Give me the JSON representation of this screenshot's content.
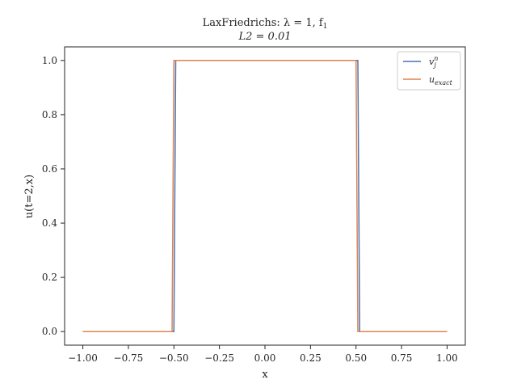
{
  "chart_data": {
    "type": "line",
    "title_line1": "LaxFriedrichs: λ = 1, f",
    "title_line1_sub": "1",
    "title_line2": "L2 = 0.01",
    "xlabel": "x",
    "ylabel": "u(t=2,x)",
    "xlim": [
      -1.1,
      1.1
    ],
    "ylim": [
      -0.05,
      1.05
    ],
    "xticks": [
      -1.0,
      -0.75,
      -0.5,
      -0.25,
      0.0,
      0.25,
      0.5,
      0.75,
      1.0
    ],
    "xtick_labels": [
      "−1.00",
      "−0.75",
      "−0.50",
      "−0.25",
      "0.00",
      "0.25",
      "0.50",
      "0.75",
      "1.00"
    ],
    "yticks": [
      0.0,
      0.2,
      0.4,
      0.6,
      0.8,
      1.0
    ],
    "ytick_labels": [
      "0.0",
      "0.2",
      "0.4",
      "0.6",
      "0.8",
      "1.0"
    ],
    "grid": false,
    "legend_position": "upper-right",
    "legend": [
      {
        "base": "v",
        "sup": "n",
        "sub": "j"
      },
      {
        "base": "u",
        "sub": "exact"
      }
    ],
    "series": [
      {
        "color": "#4c72b0",
        "x": [
          -1.0,
          -0.5,
          -0.49,
          0.51,
          0.52,
          1.0
        ],
        "y": [
          0.0,
          0.0,
          1.0,
          1.0,
          0.0,
          0.0
        ]
      },
      {
        "color": "#dd8452",
        "x": [
          -1.0,
          -0.51,
          -0.5,
          0.5,
          0.51,
          1.0
        ],
        "y": [
          0.0,
          0.0,
          1.0,
          1.0,
          0.0,
          0.0
        ]
      }
    ]
  }
}
